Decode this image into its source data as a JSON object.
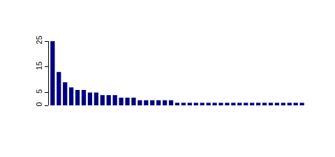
{
  "chart_data": {
    "type": "bar",
    "categories": [
      null,
      null,
      null,
      null,
      null,
      null,
      null,
      null,
      null,
      null,
      null,
      null,
      null,
      null,
      null,
      null,
      null,
      null,
      null,
      null,
      null,
      null,
      null,
      null,
      null,
      null,
      null,
      null,
      null,
      null,
      null,
      null,
      null,
      null,
      null,
      null,
      null,
      null,
      null,
      null,
      null
    ],
    "values": [
      25,
      13,
      9,
      7,
      6,
      6,
      5,
      5,
      4,
      4,
      4,
      3,
      3,
      3,
      2,
      2,
      2,
      2,
      2,
      2,
      1,
      1,
      1,
      1,
      1,
      1,
      1,
      1,
      1,
      1,
      1,
      1,
      1,
      1,
      1,
      1,
      1,
      1,
      1,
      1,
      1
    ],
    "color": "#000080",
    "ylim": [
      0,
      25
    ],
    "yticks": [
      0,
      5,
      15,
      25
    ],
    "grid": false,
    "tick_labels": "y"
  }
}
